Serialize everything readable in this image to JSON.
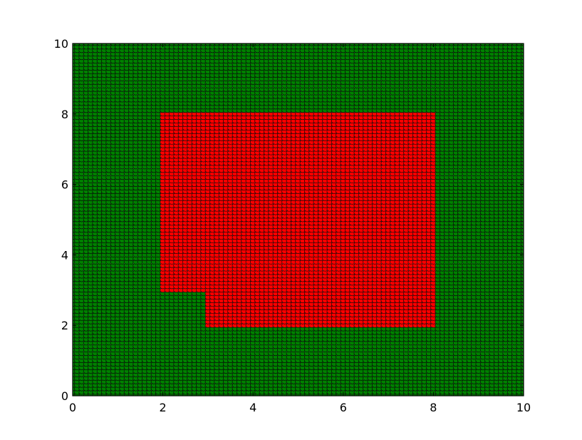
{
  "chart_data": {
    "type": "scatter",
    "title": "",
    "xlabel": "",
    "ylabel": "",
    "xlim": [
      0,
      10
    ],
    "ylim": [
      0,
      10
    ],
    "grid": false,
    "x_ticks": [
      "0",
      "2",
      "4",
      "6",
      "8",
      "10"
    ],
    "y_ticks": [
      "0",
      "2",
      "4",
      "6",
      "8",
      "10"
    ],
    "point_spacing": 0.1,
    "background_color": "#008000",
    "region_color": "#ff0000",
    "marker_edge_color": "#000000",
    "regions": [
      {
        "x": [
          2,
          8
        ],
        "y": [
          3,
          8
        ]
      },
      {
        "x": [
          3,
          8
        ],
        "y": [
          2,
          3
        ]
      }
    ]
  }
}
